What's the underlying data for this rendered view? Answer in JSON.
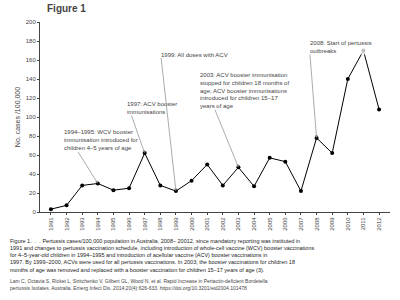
{
  "chart_data": {
    "type": "line",
    "title": "Figure 1",
    "ylabel": "No. cases /100,000",
    "x": [
      1991,
      1992,
      1993,
      1994,
      1995,
      1996,
      1997,
      1998,
      1999,
      2000,
      2001,
      2002,
      2003,
      2004,
      2005,
      2006,
      2007,
      2008,
      2009,
      2010,
      2011,
      2012
    ],
    "values": [
      3,
      7,
      28,
      30,
      23,
      25,
      62,
      28,
      22,
      33,
      50,
      28,
      47,
      27,
      57,
      53,
      22,
      78,
      62,
      140,
      170,
      108
    ],
    "color": "#000000",
    "marker": "circle",
    "xlim": [
      1990.3,
      2012.7
    ],
    "xticks": [
      1991,
      1992,
      1993,
      1994,
      1995,
      1996,
      1997,
      1998,
      1999,
      2000,
      2001,
      2002,
      2003,
      2004,
      2005,
      2006,
      2007,
      2008,
      2009,
      2010,
      2011,
      2012
    ],
    "ylim": [
      0,
      200
    ],
    "yticks": [
      0,
      20,
      40,
      60,
      80,
      100,
      120,
      140,
      160,
      180,
      200
    ],
    "grid": false,
    "annotations": [
      {
        "text": "1994–1995: WCV booster\nimmunisation introduced for\nchildren 4–5 years of age",
        "x": 1994,
        "y": 30,
        "text_x": 1991.8,
        "text_y": 88
      },
      {
        "text": "1997: ACV booster\nimmunisations",
        "x": 1997,
        "y": 62,
        "text_x": 1995.8,
        "text_y": 118
      },
      {
        "text": "1999: All doses with ACV",
        "x": 1999,
        "y": 22,
        "text_x": 1998.0,
        "text_y": 170
      },
      {
        "text": "2003: ACV booster immunisation\nstopped for children 18 months of\nage; ACV booster immunisations\nintroduced for children 15–17\nyears of age",
        "x": 2003,
        "y": 47,
        "text_x": 2000.5,
        "text_y": 148
      },
      {
        "text": "2008: Start of pertussis\noutbreaks",
        "x": 2008,
        "y": 78,
        "text_x": 2007.5,
        "text_y": 182
      }
    ],
    "caption": [
      "Figure 1.  .  . Pertussis cases/100,000 population in Australia, 2008– 20012, since mandatory reporting was instituted in",
      "1991 and changes to pertussis vaccination schedule, including introduction of whole-cell vaccine (WCV) booster vaccinations",
      "for 4–5-year-old children in 1994–1995 and introduction of acellular vaccine (ACV) booster vaccinations in",
      "1997. By 1999–2000, ACVs were used for all pertussis vaccinations. In 2003, the booster vaccinations for children 18",
      "months of age was removed and replaced with a booster vaccination for children 15–17 years of age (3)."
    ],
    "citation": "Lam C, Octavia S, Ricket L, Stritchenko V, Gilbert GL, Wood N, et al. Rapid Increase in Pertactin-deficient Bordetella pertussis Isolates. Australia. Emerg Infect Dis. 2014;20(4):626-633. https://doi.org/10.3201/eid2004.101478"
  }
}
